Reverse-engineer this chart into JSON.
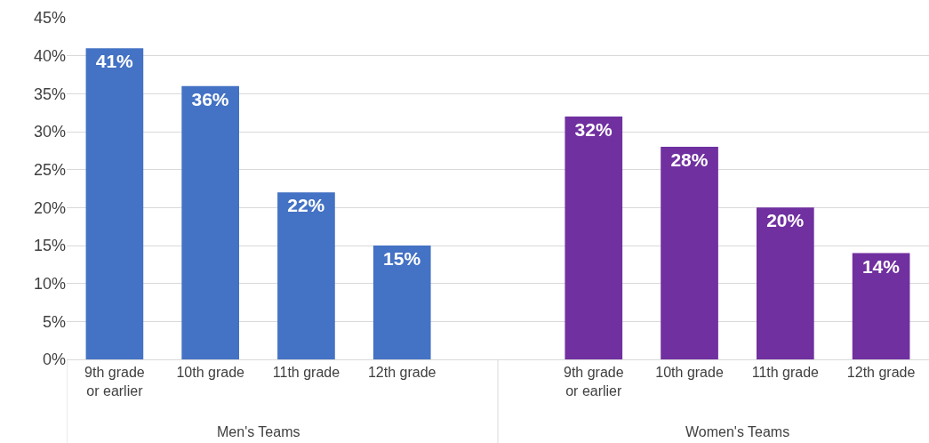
{
  "chart_data": {
    "type": "bar",
    "categories": [
      "9th grade or earlier",
      "10th grade",
      "11th grade",
      "12th grade",
      null,
      "9th grade or earlier",
      "10th grade",
      "11th grade",
      "12th grade"
    ],
    "series": [
      {
        "color": "#4472c4",
        "values": [
          41,
          36,
          22,
          15,
          null,
          null,
          null,
          null,
          null
        ],
        "value_labels": [
          "41%",
          "36%",
          "22%",
          "15%",
          null,
          null,
          null,
          null,
          null
        ]
      },
      {
        "color": "#7030a0",
        "values": [
          null,
          null,
          null,
          null,
          null,
          32,
          28,
          20,
          14
        ],
        "value_labels": [
          null,
          null,
          null,
          null,
          null,
          "32%",
          "28%",
          "20%",
          "14%"
        ]
      }
    ],
    "ylim": [
      0,
      45
    ],
    "yticks": [
      {
        "value": 0,
        "label": "0%"
      },
      {
        "value": 5,
        "label": "5%"
      },
      {
        "value": 10,
        "label": "10%"
      },
      {
        "value": 15,
        "label": "15%"
      },
      {
        "value": 20,
        "label": "20%"
      },
      {
        "value": 25,
        "label": "25%"
      },
      {
        "value": 30,
        "label": "30%"
      },
      {
        "value": 35,
        "label": "35%"
      },
      {
        "value": 40,
        "label": "40%"
      },
      {
        "value": 45,
        "label": "45%"
      }
    ],
    "annotations": [
      "Men's Teams",
      "Women's Teams"
    ],
    "grid": "y",
    "legend": false
  }
}
